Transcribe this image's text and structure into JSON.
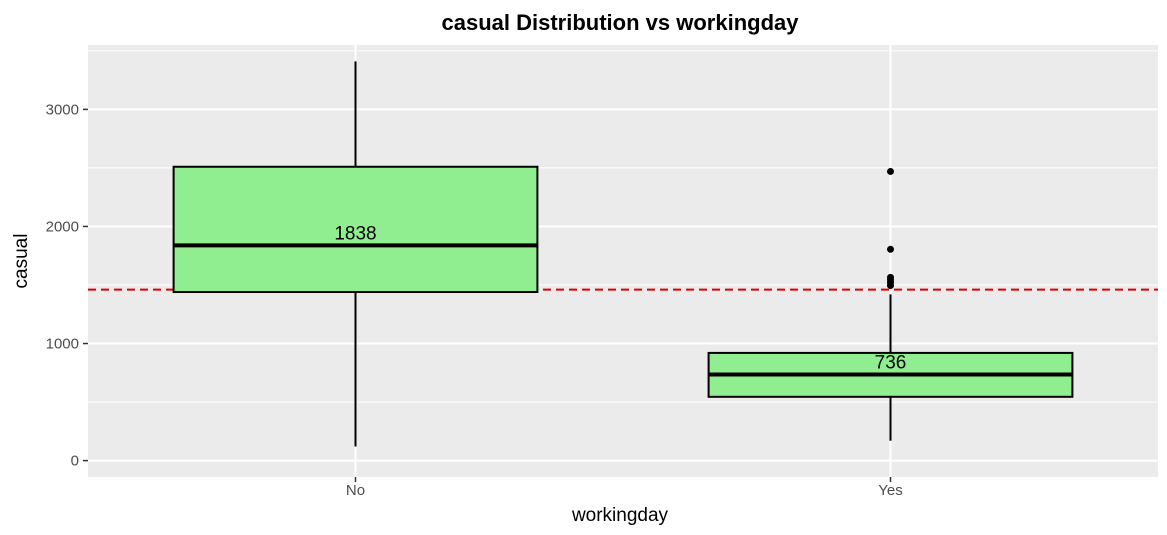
{
  "chart_data": {
    "type": "box",
    "title": "casual  Distribution vs  workingday",
    "xlabel": "workingday",
    "ylabel": "casual",
    "categories": [
      "No",
      "Yes"
    ],
    "ylim": [
      -140,
      3550
    ],
    "yticks": [
      0,
      1000,
      2000,
      3000
    ],
    "ytick_labels": [
      "0",
      "1000",
      "2000",
      "3000"
    ],
    "grid": true,
    "legend": "none",
    "reference_line": {
      "y": 1460,
      "color": "#e00000",
      "style": "dashed"
    },
    "boxes": [
      {
        "category": "No",
        "whisker_low": 120,
        "q1": 1440,
        "median": 1838,
        "q3": 2510,
        "whisker_high": 3410,
        "outliers": [],
        "median_label": "1838"
      },
      {
        "category": "Yes",
        "whisker_low": 170,
        "q1": 545,
        "median": 736,
        "q3": 920,
        "whisker_high": 1420,
        "outliers": [
          2470,
          1805,
          1565,
          1545,
          1520,
          1495
        ],
        "median_label": "736"
      }
    ],
    "colors": {
      "panel_background": "#ebebeb",
      "grid": "#ffffff",
      "box_fill": "#90ee90",
      "box_stroke": "#000000"
    }
  }
}
